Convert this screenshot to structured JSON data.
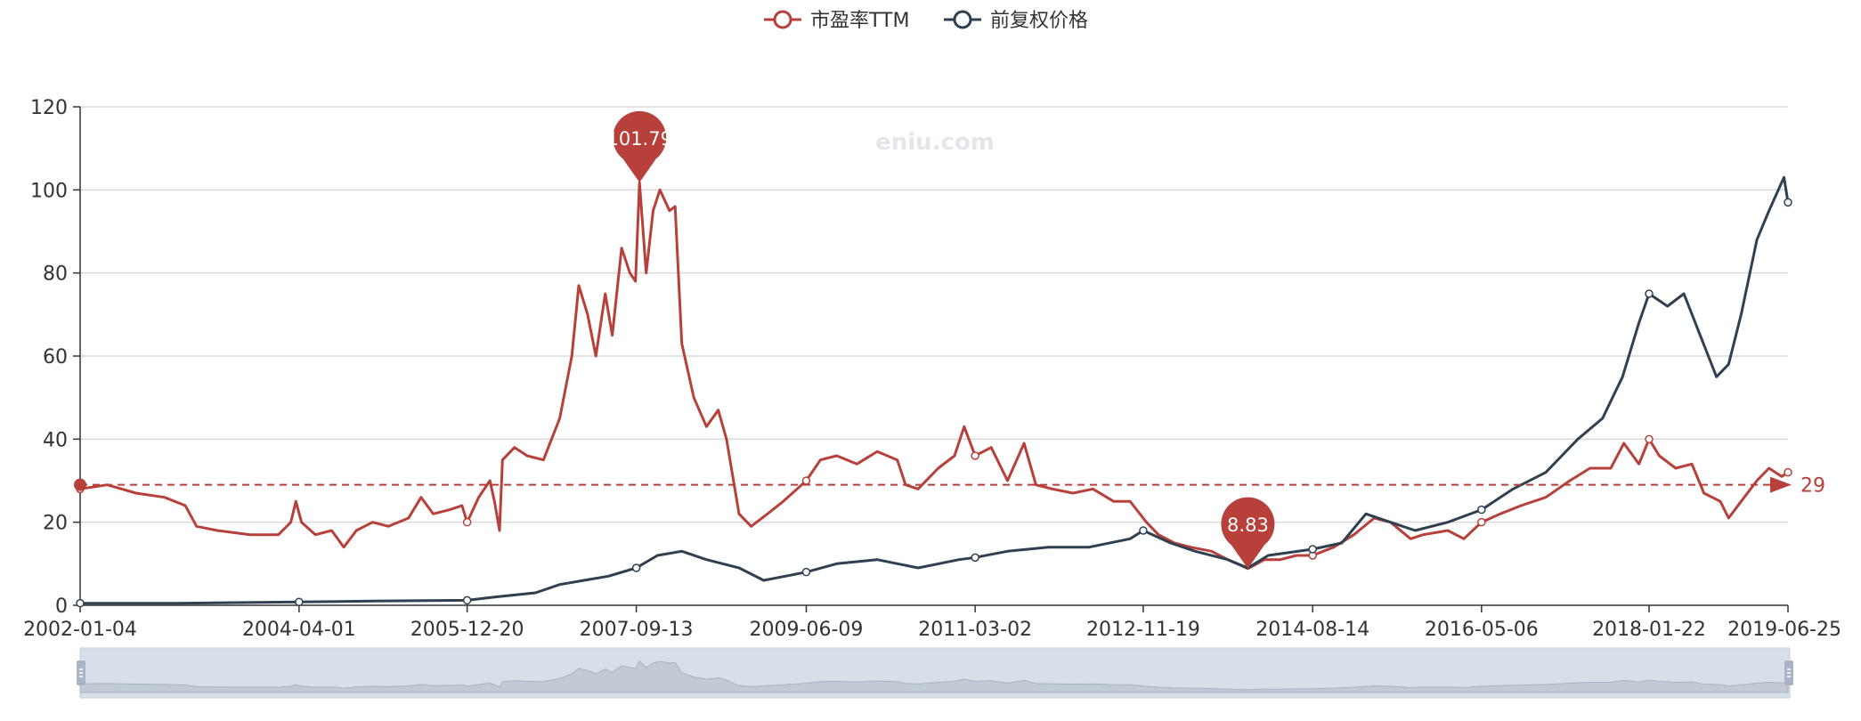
{
  "legend": [
    {
      "name": "市盈率TTM",
      "color": "#b7403a"
    },
    {
      "name": "前复权价格",
      "color": "#2f4050"
    }
  ],
  "watermark": "eniu.com",
  "chart_data": {
    "type": "line",
    "y_axis": {
      "min": 0,
      "max": 120,
      "ticks": [
        0,
        20,
        40,
        60,
        80,
        100,
        120
      ]
    },
    "x_axis": {
      "start": "2002-01-04",
      "end": "2019-06-25",
      "tick_labels": [
        "2002-01-04",
        "2004-04-01",
        "2005-12-20",
        "2007-09-13",
        "2009-06-09",
        "2011-03-02",
        "2012-11-19",
        "2014-08-14",
        "2016-05-06",
        "2018-01-22",
        "2019-06-25"
      ]
    },
    "grid": true,
    "legend_position": "top-center",
    "series": [
      {
        "name": "市盈率TTM",
        "color": "#b7403a",
        "points": [
          [
            "2002-01-04",
            28
          ],
          [
            "2002-04-15",
            29
          ],
          [
            "2002-08-01",
            27
          ],
          [
            "2002-11-15",
            26
          ],
          [
            "2003-02-01",
            24
          ],
          [
            "2003-03-15",
            19
          ],
          [
            "2003-06-01",
            18
          ],
          [
            "2003-10-01",
            17
          ],
          [
            "2004-01-15",
            17
          ],
          [
            "2004-03-01",
            20
          ],
          [
            "2004-03-20",
            25
          ],
          [
            "2004-04-10",
            20
          ],
          [
            "2004-06-01",
            17
          ],
          [
            "2004-08-01",
            18
          ],
          [
            "2004-09-15",
            14
          ],
          [
            "2004-11-01",
            18
          ],
          [
            "2005-01-01",
            20
          ],
          [
            "2005-03-01",
            19
          ],
          [
            "2005-05-15",
            21
          ],
          [
            "2005-07-01",
            26
          ],
          [
            "2005-08-15",
            22
          ],
          [
            "2005-10-15",
            23
          ],
          [
            "2005-12-01",
            24
          ],
          [
            "2005-12-20",
            20
          ],
          [
            "2006-02-01",
            26
          ],
          [
            "2006-03-15",
            30
          ],
          [
            "2006-04-01",
            25
          ],
          [
            "2006-04-20",
            18
          ],
          [
            "2006-05-01",
            35
          ],
          [
            "2006-06-15",
            38
          ],
          [
            "2006-08-01",
            36
          ],
          [
            "2006-10-01",
            35
          ],
          [
            "2006-12-01",
            45
          ],
          [
            "2007-01-15",
            60
          ],
          [
            "2007-02-10",
            77
          ],
          [
            "2007-03-15",
            70
          ],
          [
            "2007-04-15",
            60
          ],
          [
            "2007-05-20",
            75
          ],
          [
            "2007-06-15",
            65
          ],
          [
            "2007-07-20",
            86
          ],
          [
            "2007-08-20",
            80
          ],
          [
            "2007-09-10",
            78
          ],
          [
            "2007-09-25",
            101.79
          ],
          [
            "2007-10-20",
            80
          ],
          [
            "2007-11-15",
            95
          ],
          [
            "2007-12-10",
            100
          ],
          [
            "2008-01-15",
            95
          ],
          [
            "2008-02-05",
            96
          ],
          [
            "2008-03-01",
            63
          ],
          [
            "2008-04-15",
            50
          ],
          [
            "2008-06-01",
            43
          ],
          [
            "2008-07-15",
            47
          ],
          [
            "2008-08-15",
            40
          ],
          [
            "2008-10-01",
            22
          ],
          [
            "2008-11-15",
            19
          ],
          [
            "2009-01-15",
            22
          ],
          [
            "2009-03-15",
            25
          ],
          [
            "2009-06-09",
            30
          ],
          [
            "2009-08-01",
            35
          ],
          [
            "2009-10-01",
            36
          ],
          [
            "2009-12-15",
            34
          ],
          [
            "2010-03-01",
            37
          ],
          [
            "2010-05-15",
            35
          ],
          [
            "2010-06-15",
            29
          ],
          [
            "2010-08-01",
            28
          ],
          [
            "2010-10-15",
            33
          ],
          [
            "2010-12-15",
            36
          ],
          [
            "2011-01-20",
            43
          ],
          [
            "2011-03-02",
            36
          ],
          [
            "2011-05-01",
            38
          ],
          [
            "2011-07-01",
            30
          ],
          [
            "2011-09-01",
            39
          ],
          [
            "2011-10-15",
            29
          ],
          [
            "2011-12-15",
            28
          ],
          [
            "2012-03-01",
            27
          ],
          [
            "2012-05-15",
            28
          ],
          [
            "2012-08-01",
            25
          ],
          [
            "2012-10-01",
            25
          ],
          [
            "2012-12-01",
            20
          ],
          [
            "2013-01-15",
            17
          ],
          [
            "2013-03-15",
            15
          ],
          [
            "2013-05-15",
            14
          ],
          [
            "2013-08-01",
            13
          ],
          [
            "2013-10-01",
            11
          ],
          [
            "2013-12-15",
            8.83
          ],
          [
            "2014-02-15",
            11
          ],
          [
            "2014-04-15",
            11
          ],
          [
            "2014-06-15",
            12
          ],
          [
            "2014-08-14",
            12
          ],
          [
            "2014-11-01",
            14
          ],
          [
            "2015-01-15",
            17
          ],
          [
            "2015-04-01",
            21
          ],
          [
            "2015-06-01",
            20
          ],
          [
            "2015-08-15",
            16
          ],
          [
            "2015-10-01",
            17
          ],
          [
            "2016-01-01",
            18
          ],
          [
            "2016-03-01",
            16
          ],
          [
            "2016-05-06",
            20
          ],
          [
            "2016-07-15",
            22
          ],
          [
            "2016-10-01",
            24
          ],
          [
            "2017-01-01",
            26
          ],
          [
            "2017-04-01",
            30
          ],
          [
            "2017-06-15",
            33
          ],
          [
            "2017-09-01",
            33
          ],
          [
            "2017-10-20",
            39
          ],
          [
            "2017-12-15",
            34
          ],
          [
            "2018-01-22",
            40
          ],
          [
            "2018-03-01",
            36
          ],
          [
            "2018-05-01",
            33
          ],
          [
            "2018-07-01",
            34
          ],
          [
            "2018-08-15",
            27
          ],
          [
            "2018-10-15",
            25
          ],
          [
            "2018-11-15",
            21
          ],
          [
            "2019-01-01",
            25
          ],
          [
            "2019-03-01",
            30
          ],
          [
            "2019-04-15",
            33
          ],
          [
            "2019-06-01",
            31
          ],
          [
            "2019-06-25",
            32
          ]
        ],
        "markers": [
          {
            "label": "101.79",
            "date": "2007-09-25",
            "value": 101.79
          },
          {
            "label": "8.83",
            "date": "2013-12-15",
            "value": 8.83
          }
        ],
        "average_line": {
          "value": 29,
          "label": "29"
        }
      },
      {
        "name": "前复权价格",
        "color": "#2f4050",
        "points": [
          [
            "2002-01-04",
            0.5
          ],
          [
            "2003-01-01",
            0.5
          ],
          [
            "2004-04-01",
            0.8
          ],
          [
            "2005-01-01",
            1
          ],
          [
            "2005-12-20",
            1.2
          ],
          [
            "2006-04-01",
            2
          ],
          [
            "2006-09-01",
            3
          ],
          [
            "2006-12-01",
            5
          ],
          [
            "2007-03-01",
            6
          ],
          [
            "2007-06-01",
            7
          ],
          [
            "2007-09-13",
            9
          ],
          [
            "2007-12-01",
            12
          ],
          [
            "2008-03-01",
            13
          ],
          [
            "2008-06-01",
            11
          ],
          [
            "2008-10-01",
            9
          ],
          [
            "2009-01-01",
            6
          ],
          [
            "2009-06-09",
            8
          ],
          [
            "2009-10-01",
            10
          ],
          [
            "2010-03-01",
            11
          ],
          [
            "2010-08-01",
            9
          ],
          [
            "2011-01-01",
            11
          ],
          [
            "2011-03-02",
            11.5
          ],
          [
            "2011-07-01",
            13
          ],
          [
            "2011-12-01",
            14
          ],
          [
            "2012-05-01",
            14
          ],
          [
            "2012-10-01",
            16
          ],
          [
            "2012-11-19",
            18
          ],
          [
            "2013-03-01",
            15
          ],
          [
            "2013-06-01",
            13
          ],
          [
            "2013-10-01",
            11
          ],
          [
            "2013-12-15",
            9
          ],
          [
            "2014-03-01",
            12
          ],
          [
            "2014-08-14",
            13.5
          ],
          [
            "2014-12-01",
            15
          ],
          [
            "2015-03-01",
            22
          ],
          [
            "2015-06-01",
            20
          ],
          [
            "2015-09-01",
            18
          ],
          [
            "2016-01-01",
            20
          ],
          [
            "2016-05-06",
            23
          ],
          [
            "2016-09-01",
            28
          ],
          [
            "2017-01-01",
            32
          ],
          [
            "2017-05-01",
            40
          ],
          [
            "2017-08-01",
            45
          ],
          [
            "2017-10-15",
            55
          ],
          [
            "2017-12-15",
            68
          ],
          [
            "2018-01-22",
            75
          ],
          [
            "2018-04-01",
            72
          ],
          [
            "2018-06-01",
            75
          ],
          [
            "2018-08-01",
            65
          ],
          [
            "2018-10-01",
            55
          ],
          [
            "2018-11-15",
            58
          ],
          [
            "2019-01-01",
            70
          ],
          [
            "2019-03-01",
            88
          ],
          [
            "2019-04-15",
            95
          ],
          [
            "2019-05-20",
            100
          ],
          [
            "2019-06-10",
            103
          ],
          [
            "2019-06-25",
            97
          ]
        ]
      }
    ],
    "data_zoom": {
      "start": "2002-01-04",
      "end": "2019-06-25"
    }
  }
}
